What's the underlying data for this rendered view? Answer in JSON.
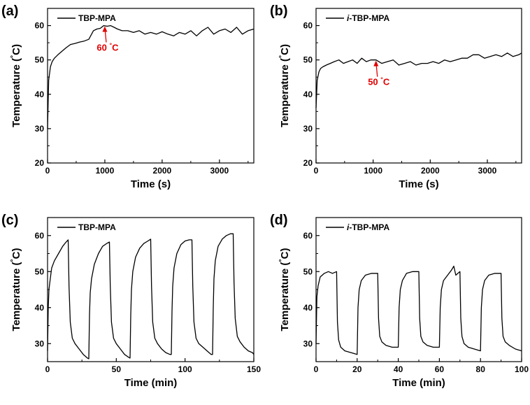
{
  "chart_data": [
    {
      "type": "line",
      "panel_label": "(a)",
      "xlabel": "Time (s)",
      "ylabel": "Temperature (°C)",
      "xlim": [
        0,
        3600
      ],
      "ylim": [
        20,
        65
      ],
      "xticks": [
        0,
        1000,
        2000,
        3000
      ],
      "yticks": [
        20,
        30,
        40,
        50,
        60
      ],
      "legend_position": "top-left",
      "annotation": {
        "text": "60 °C",
        "x": 1000,
        "y": 60,
        "color": "#e00000"
      },
      "series": [
        {
          "name": "TBP-MPA",
          "color": "#000000",
          "x": [
            0,
            20,
            50,
            80,
            120,
            180,
            250,
            320,
            400,
            480,
            560,
            640,
            720,
            800,
            860,
            920,
            980,
            1040,
            1100,
            1160,
            1220,
            1300,
            1400,
            1500,
            1600,
            1700,
            1800,
            1900,
            2000,
            2100,
            2200,
            2300,
            2400,
            2500,
            2600,
            2700,
            2800,
            2900,
            3000,
            3100,
            3200,
            3300,
            3400,
            3500,
            3600
          ],
          "y": [
            30,
            44,
            48,
            49.5,
            50.5,
            51.5,
            52.5,
            53.5,
            54.5,
            54.8,
            55.2,
            55.5,
            56,
            58.5,
            59,
            59.2,
            60,
            59.8,
            60,
            59.5,
            59,
            58.5,
            58.5,
            58,
            58.5,
            57.5,
            58,
            57.5,
            58.2,
            57.5,
            57,
            58,
            57.5,
            58.5,
            57,
            58.5,
            59.5,
            57.5,
            58.5,
            59,
            58,
            59.5,
            57.5,
            58.5,
            59
          ]
        }
      ]
    },
    {
      "type": "line",
      "panel_label": "(b)",
      "xlabel": "Time (s)",
      "ylabel": "Temperature (°C)",
      "xlim": [
        0,
        3600
      ],
      "ylim": [
        20,
        65
      ],
      "xticks": [
        0,
        1000,
        2000,
        3000
      ],
      "yticks": [
        20,
        30,
        40,
        50,
        60
      ],
      "legend_position": "top-left",
      "annotation": {
        "text": "50 °C",
        "x": 1050,
        "y": 50,
        "color": "#e00000"
      },
      "series": [
        {
          "name": "i-TBP-MPA",
          "color": "#000000",
          "x": [
            0,
            20,
            50,
            80,
            120,
            180,
            250,
            320,
            400,
            480,
            560,
            640,
            720,
            800,
            880,
            960,
            1050,
            1150,
            1250,
            1350,
            1450,
            1550,
            1650,
            1750,
            1850,
            1950,
            2050,
            2150,
            2250,
            2350,
            2450,
            2550,
            2650,
            2750,
            2850,
            2950,
            3050,
            3150,
            3250,
            3350,
            3450,
            3550,
            3600
          ],
          "y": [
            36,
            44,
            46.5,
            47.5,
            48,
            48.5,
            49,
            49.5,
            50,
            49,
            49.5,
            50,
            49,
            50.5,
            49.5,
            50,
            50,
            49,
            49.5,
            50,
            48.5,
            49,
            49.5,
            48.5,
            49,
            49,
            49.5,
            49,
            50,
            49.5,
            50,
            50.5,
            50.5,
            51.5,
            51.5,
            50.5,
            51,
            51.5,
            51,
            52,
            51,
            51.5,
            52
          ]
        }
      ]
    },
    {
      "type": "line",
      "panel_label": "(c)",
      "xlabel": "Time (min)",
      "ylabel": "Temperature (°C)",
      "xlim": [
        0,
        150
      ],
      "ylim": [
        25,
        65
      ],
      "xticks": [
        0,
        50,
        100,
        150
      ],
      "yticks": [
        30,
        40,
        50,
        60
      ],
      "legend_position": "top-left",
      "series": [
        {
          "name": "TBP-MPA",
          "color": "#000000",
          "x": [
            0,
            0.5,
            1,
            2,
            3,
            5,
            8,
            11,
            13,
            15,
            15.6,
            16.5,
            18,
            20,
            23,
            26,
            29,
            30,
            30.5,
            31,
            32,
            34,
            37,
            40,
            43,
            45,
            45.6,
            46.5,
            48,
            50,
            53,
            56,
            59,
            60,
            60.5,
            61,
            62,
            64,
            67,
            70,
            73,
            75,
            75.6,
            76.5,
            78,
            80,
            83,
            86,
            89,
            90,
            90.5,
            91,
            92,
            94,
            97,
            100,
            103,
            105,
            105.6,
            106.5,
            108,
            110,
            113,
            116,
            119,
            120,
            120.5,
            121,
            122,
            124,
            127,
            130,
            133,
            135,
            135.6,
            136.5,
            138,
            140,
            143,
            146,
            149,
            150
          ],
          "y": [
            28,
            40,
            45,
            48,
            51,
            53,
            55,
            57,
            58,
            58.8,
            46,
            36,
            31.5,
            30,
            28.5,
            27,
            26,
            25.8,
            38,
            44,
            48,
            52,
            55,
            57,
            57.8,
            58.2,
            46,
            36,
            31.5,
            30,
            28.5,
            27,
            26.2,
            26,
            38,
            45,
            50,
            54,
            56.5,
            57.8,
            58.5,
            59,
            46,
            36,
            31.5,
            30,
            28.5,
            27.5,
            27,
            27,
            39,
            46,
            51,
            55,
            57.5,
            58.5,
            58.8,
            58.8,
            46,
            36,
            31.5,
            30,
            29,
            28,
            27,
            27,
            40,
            48,
            53,
            57,
            59,
            60,
            60.5,
            60.5,
            47,
            37,
            32,
            30.5,
            29,
            28,
            27.5,
            27
          ]
        }
      ]
    },
    {
      "type": "line",
      "panel_label": "(d)",
      "xlabel": "Time (min)",
      "ylabel": "Temperature (°C)",
      "xlim": [
        0,
        100
      ],
      "ylim": [
        25,
        65
      ],
      "xticks": [
        0,
        20,
        40,
        60,
        80,
        100
      ],
      "yticks": [
        30,
        40,
        50,
        60
      ],
      "legend_position": "top-left",
      "series": [
        {
          "name": "i-TBP-MPA",
          "color": "#000000",
          "x": [
            0,
            0.4,
            1,
            2,
            4,
            6,
            8,
            10,
            10.4,
            11,
            12,
            14,
            17,
            20,
            20.4,
            21,
            22,
            24,
            27,
            30,
            30.4,
            31,
            32,
            34,
            37,
            40,
            40.4,
            41,
            42,
            44,
            47,
            50,
            50.4,
            51,
            52,
            54,
            57,
            60,
            60.4,
            61,
            62,
            64,
            66,
            67,
            68,
            70,
            70.4,
            71,
            72,
            74,
            77,
            80,
            80.4,
            81,
            82,
            84,
            87,
            90,
            90.4,
            91,
            92,
            94,
            97,
            100
          ],
          "y": [
            30,
            43,
            46,
            48.5,
            49.5,
            50,
            49.5,
            50,
            36,
            31,
            29,
            28,
            27.5,
            27,
            40,
            45,
            47.5,
            49,
            49.5,
            49.5,
            37,
            32,
            30.5,
            29.5,
            29,
            29,
            40,
            45,
            47.5,
            49.5,
            50,
            50,
            37,
            32,
            30.5,
            29.5,
            29,
            29,
            40,
            45,
            47.5,
            49,
            50.5,
            51.5,
            49,
            50,
            37,
            32,
            30,
            29,
            28.5,
            28,
            40,
            45,
            47.5,
            49,
            49.5,
            49.5,
            37,
            32,
            30.5,
            29.5,
            28.5,
            28
          ]
        }
      ]
    }
  ]
}
